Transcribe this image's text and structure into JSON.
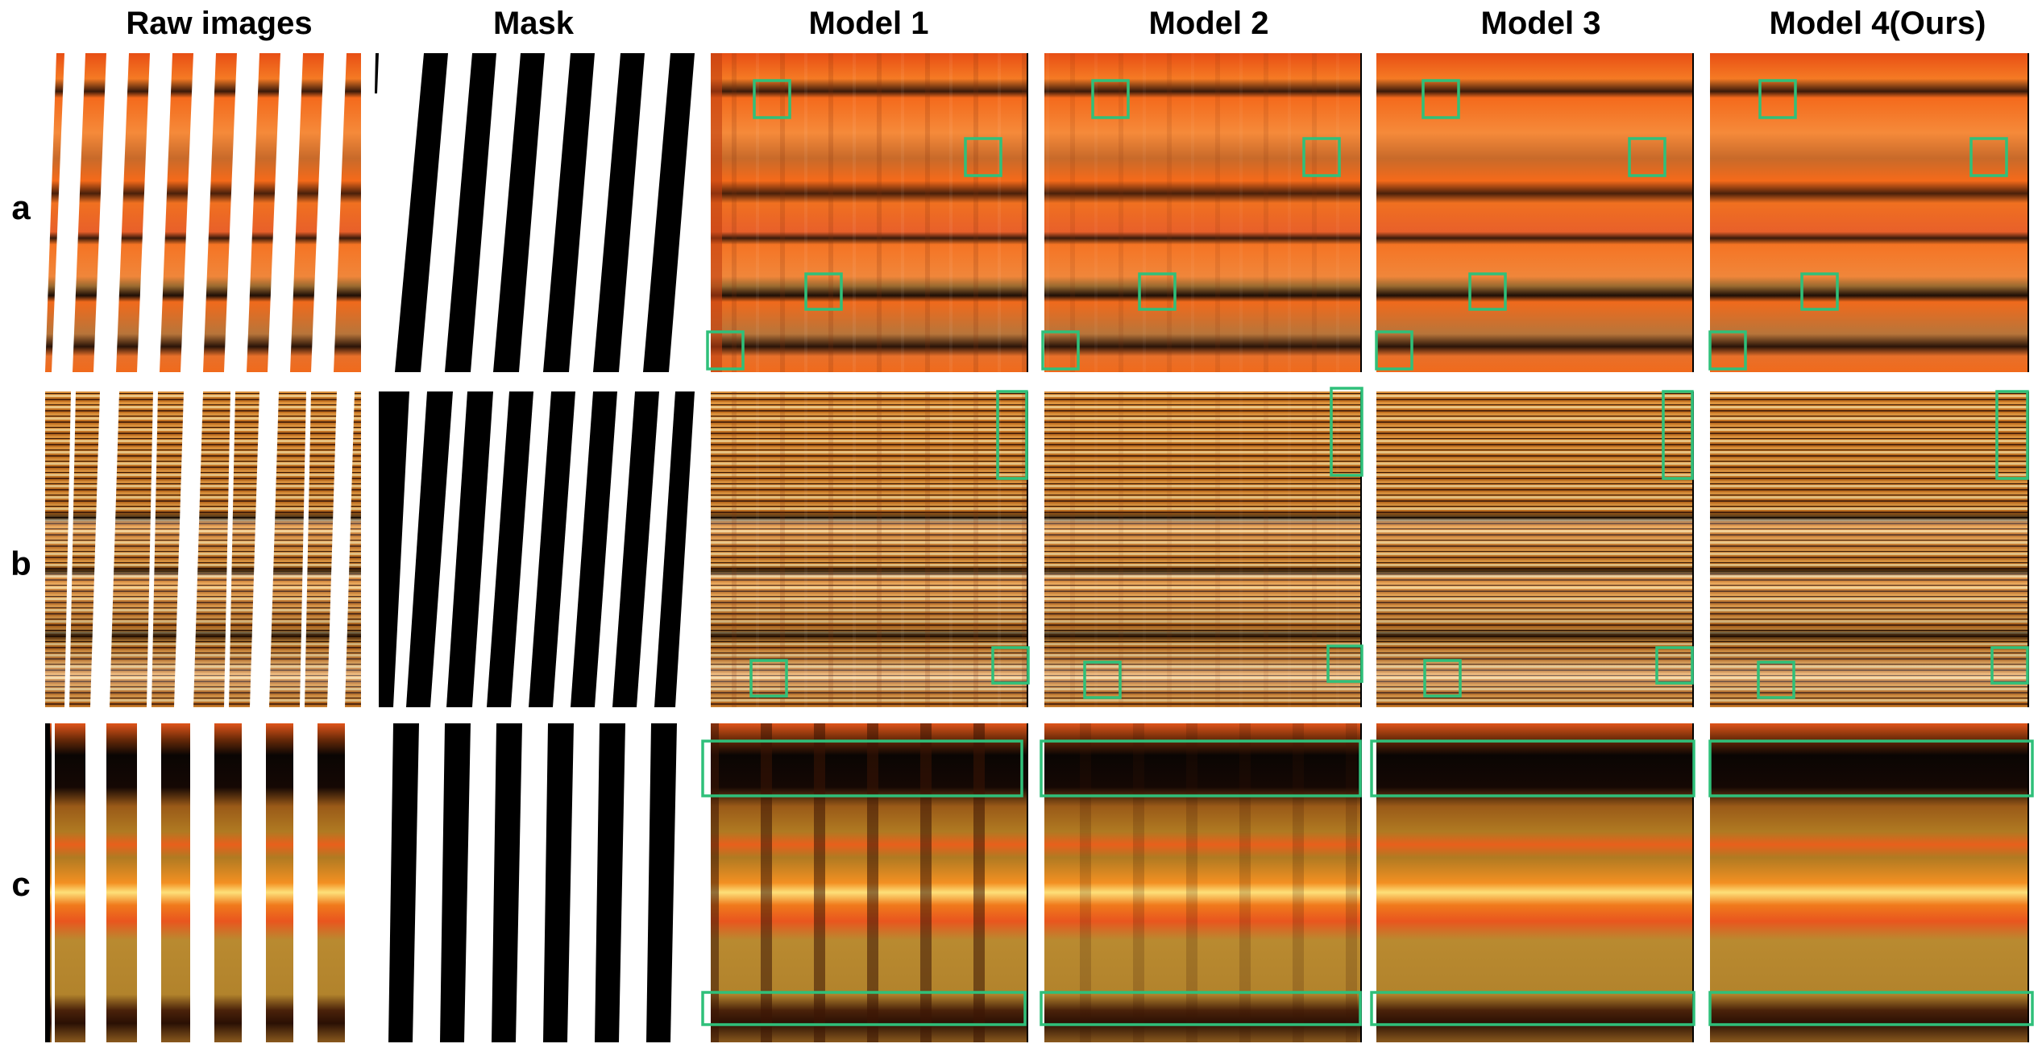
{
  "figure": {
    "column_titles": [
      "Raw images",
      "Mask",
      "Model 1",
      "Model 2",
      "Model 3",
      "Model 4(Ours)"
    ],
    "row_labels": [
      "a",
      "b",
      "c"
    ],
    "colors": {
      "highlight_box": "#2fc07a",
      "mask_black": "#000000",
      "row_a_base": "#f26a1b",
      "row_b_base": "#c8701e",
      "row_c_base": "#b07a22"
    }
  }
}
